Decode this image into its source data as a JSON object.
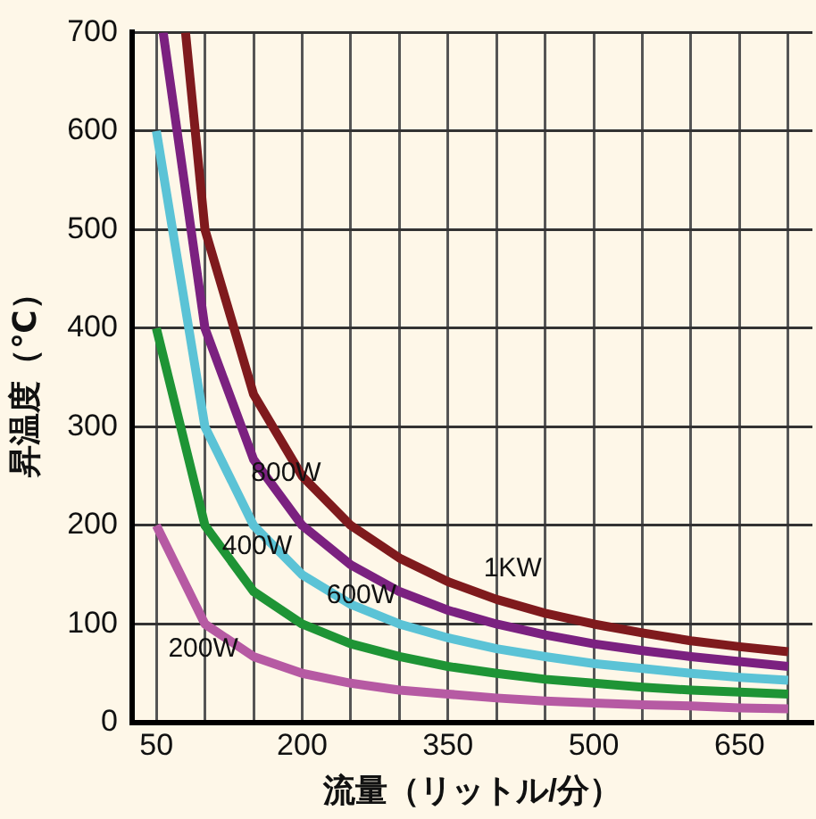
{
  "chart_data": {
    "type": "line",
    "xlabel": "流量（リットル/分）",
    "ylabel": "昇温度（℃）",
    "xlim": [
      25,
      725
    ],
    "ylim": [
      0,
      700
    ],
    "xticks": [
      50,
      {
        "value": 100,
        "label": null
      },
      {
        "value": 150,
        "label": null
      },
      200,
      {
        "value": 250,
        "label": null
      },
      {
        "value": 300,
        "label": null
      },
      350,
      {
        "value": 400,
        "label": null
      },
      {
        "value": 450,
        "label": null
      },
      500,
      {
        "value": 550,
        "label": null
      },
      {
        "value": 600,
        "label": null
      },
      650,
      {
        "value": 700,
        "label": null
      }
    ],
    "yticks": [
      0,
      100,
      200,
      300,
      400,
      500,
      600,
      700
    ],
    "grid": true,
    "legend": false,
    "marker": "none",
    "line_style": "solid",
    "series": [
      {
        "name": "1KW",
        "color": "#7f1a1d",
        "x": [
          80,
          100,
          150,
          200,
          250,
          300,
          350,
          400,
          450,
          500,
          550,
          600,
          650,
          700
        ],
        "values": [
          700,
          500,
          333,
          250,
          200,
          167,
          143,
          125,
          111,
          100,
          91,
          83,
          77,
          72
        ]
      },
      {
        "name": "800W",
        "color": "#7b2180",
        "x": [
          57,
          100,
          150,
          200,
          250,
          300,
          350,
          400,
          450,
          500,
          550,
          600,
          650,
          700
        ],
        "values": [
          700,
          400,
          267,
          200,
          160,
          133,
          114,
          100,
          89,
          80,
          73,
          67,
          62,
          57
        ]
      },
      {
        "name": "600W",
        "color": "#5bc3d6",
        "x": [
          50,
          100,
          150,
          200,
          250,
          300,
          350,
          400,
          450,
          500,
          550,
          600,
          650,
          700
        ],
        "values": [
          600,
          300,
          200,
          150,
          120,
          100,
          86,
          75,
          67,
          60,
          55,
          50,
          46,
          43
        ]
      },
      {
        "name": "400W",
        "color": "#1e9435",
        "x": [
          50,
          100,
          150,
          200,
          250,
          300,
          350,
          400,
          450,
          500,
          550,
          600,
          650,
          700
        ],
        "values": [
          400,
          200,
          133,
          100,
          80,
          67,
          57,
          50,
          44,
          40,
          36,
          33,
          31,
          29
        ]
      },
      {
        "name": "200W",
        "color": "#b65aa3",
        "x": [
          50,
          100,
          150,
          200,
          250,
          300,
          350,
          400,
          450,
          500,
          550,
          600,
          650,
          700
        ],
        "values": [
          200,
          100,
          67,
          50,
          40,
          33,
          29,
          25,
          22,
          20,
          18,
          17,
          15,
          14
        ]
      }
    ]
  }
}
